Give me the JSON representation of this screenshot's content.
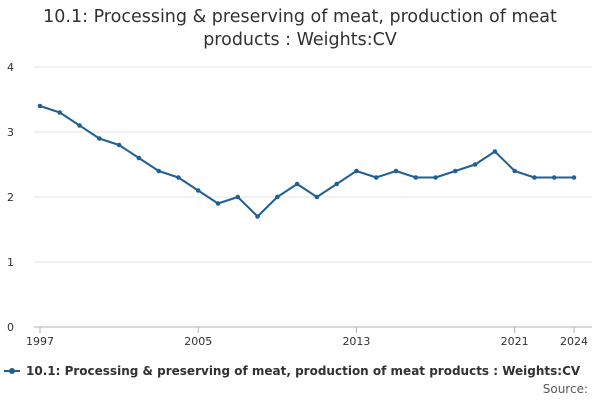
{
  "chart_data": {
    "type": "line",
    "title": "10.1: Processing & preserving of meat, production of meat products : Weights:CV",
    "title_lines": [
      "10.1: Processing & preserving of meat, production of meat",
      "products : Weights:CV"
    ],
    "xlabel": "",
    "ylabel": "",
    "x": [
      1997,
      1998,
      1999,
      2000,
      2001,
      2002,
      2003,
      2004,
      2005,
      2006,
      2007,
      2008,
      2009,
      2010,
      2011,
      2012,
      2013,
      2014,
      2015,
      2016,
      2017,
      2018,
      2019,
      2020,
      2021,
      2022,
      2023,
      2024
    ],
    "x_tick_labels": [
      "1997",
      "2005",
      "2013",
      "2021",
      "2024"
    ],
    "ylim": [
      0,
      4
    ],
    "y_ticks": [
      "0",
      "1",
      "2",
      "3",
      "4"
    ],
    "grid": true,
    "series": [
      {
        "name": "10.1: Processing & preserving of meat, production of meat products : Weights:CV",
        "color": "#206095",
        "values": [
          3.4,
          3.3,
          3.1,
          2.9,
          2.8,
          2.6,
          2.4,
          2.3,
          2.1,
          1.9,
          2.0,
          1.7,
          2.0,
          2.2,
          2.0,
          2.2,
          2.4,
          2.3,
          2.4,
          2.3,
          2.3,
          2.4,
          2.5,
          2.7,
          2.4,
          2.3,
          2.3,
          2.3
        ]
      }
    ],
    "legend_position": "bottom-left",
    "source_label": "Source:"
  }
}
